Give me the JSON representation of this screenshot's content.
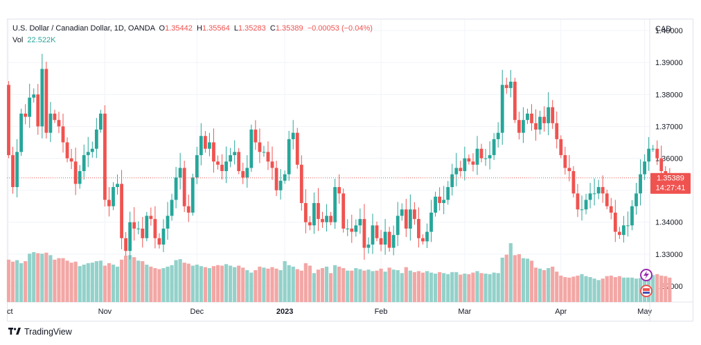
{
  "legend": {
    "symbol": "U.S. Dollar / Canadian Dollar, 1D, OANDA",
    "o_label": "O",
    "o": "1.35442",
    "h_label": "H",
    "h": "1.35564",
    "l_label": "L",
    "l": "1.35283",
    "c_label": "C",
    "c": "1.35389",
    "change": "−0.00053 (−0.04%)",
    "vol_label": "Vol",
    "vol": "22.522K"
  },
  "brand": "TradingView",
  "colors": {
    "up": "#26a69a",
    "down": "#ef5350",
    "up_vol": "#93d1ca",
    "down_vol": "#f2a7a5",
    "grid": "#f0f3fa"
  },
  "chart_data": {
    "type": "candlestick",
    "currency": "CAD",
    "ylim": [
      1.315,
      1.4035
    ],
    "y_ticks": [
      "1.40000",
      "1.39000",
      "1.38000",
      "1.37000",
      "1.36000",
      "1.35000",
      "1.34000",
      "1.33000",
      "1.32000"
    ],
    "x_ticks": [
      {
        "label": "ct",
        "index": 0
      },
      {
        "label": "Nov",
        "index": 23
      },
      {
        "label": "Dec",
        "index": 45
      },
      {
        "label": "2023",
        "index": 66
      },
      {
        "label": "Feb",
        "index": 89
      },
      {
        "label": "Mar",
        "index": 109
      },
      {
        "label": "Apr",
        "index": 132
      },
      {
        "label": "May",
        "index": 152
      }
    ],
    "last_price": "1.35389",
    "countdown": "14:27:41",
    "close": [
      1.361,
      1.351,
      1.362,
      1.374,
      1.373,
      1.379,
      1.38,
      1.37,
      1.388,
      1.368,
      1.374,
      1.372,
      1.37,
      1.365,
      1.36,
      1.359,
      1.352,
      1.356,
      1.361,
      1.362,
      1.363,
      1.369,
      1.374,
      1.347,
      1.345,
      1.351,
      1.352,
      1.335,
      1.331,
      1.34,
      1.338,
      1.338,
      1.335,
      1.342,
      1.341,
      1.335,
      1.333,
      1.338,
      1.342,
      1.347,
      1.354,
      1.357,
      1.345,
      1.343,
      1.354,
      1.361,
      1.367,
      1.363,
      1.365,
      1.359,
      1.358,
      1.356,
      1.359,
      1.361,
      1.362,
      1.356,
      1.354,
      1.357,
      1.369,
      1.365,
      1.362,
      1.362,
      1.359,
      1.357,
      1.35,
      1.353,
      1.355,
      1.366,
      1.368,
      1.358,
      1.346,
      1.34,
      1.339,
      1.346,
      1.341,
      1.34,
      1.342,
      1.34,
      1.351,
      1.349,
      1.338,
      1.338,
      1.337,
      1.339,
      1.341,
      1.332,
      1.333,
      1.339,
      1.335,
      1.333,
      1.337,
      1.332,
      1.336,
      1.342,
      1.344,
      1.338,
      1.344,
      1.341,
      1.335,
      1.334,
      1.337,
      1.343,
      1.348,
      1.346,
      1.347,
      1.351,
      1.355,
      1.357,
      1.356,
      1.36,
      1.359,
      1.358,
      1.363,
      1.36,
      1.36,
      1.361,
      1.366,
      1.368,
      1.383,
      1.382,
      1.384,
      1.372,
      1.368,
      1.372,
      1.374,
      1.371,
      1.369,
      1.373,
      1.371,
      1.376,
      1.371,
      1.366,
      1.361,
      1.357,
      1.356,
      1.349,
      1.344,
      1.344,
      1.347,
      1.349,
      1.349,
      1.351,
      1.349,
      1.345,
      1.343,
      1.337,
      1.336,
      1.339,
      1.339,
      1.345,
      1.349,
      1.355,
      1.359,
      1.363,
      1.363,
      1.36,
      1.356,
      1.354,
      1.3539
    ],
    "volume": [
      17.0,
      16.2,
      16.8,
      15.6,
      16.4,
      19.4,
      20.0,
      19.6,
      19.4,
      19.8,
      18.8,
      17.0,
      17.6,
      17.6,
      16.6,
      15.8,
      16.2,
      14.4,
      15.0,
      15.6,
      15.8,
      16.4,
      16.6,
      14.6,
      15.6,
      15.0,
      14.2,
      17.0,
      18.6,
      18.8,
      18.0,
      16.6,
      16.4,
      15.0,
      14.2,
      13.6,
      13.2,
      13.6,
      14.2,
      14.8,
      16.8,
      17.2,
      15.8,
      15.4,
      14.6,
      15.0,
      14.4,
      14.0,
      13.6,
      14.4,
      14.8,
      14.6,
      15.2,
      14.6,
      14.0,
      14.6,
      13.8,
      12.8,
      11.8,
      12.8,
      14.2,
      13.8,
      13.4,
      14.0,
      13.4,
      12.8,
      16.4,
      14.8,
      14.2,
      13.2,
      12.6,
      15.6,
      14.6,
      11.6,
      13.0,
      13.6,
      14.2,
      11.6,
      14.8,
      14.2,
      13.6,
      12.6,
      12.6,
      13.6,
      13.2,
      12.6,
      13.0,
      12.4,
      12.6,
      13.4,
      12.2,
      13.8,
      13.0,
      12.8,
      11.6,
      14.0,
      12.6,
      12.0,
      12.4,
      11.8,
      12.4,
      11.8,
      11.4,
      12.0,
      11.6,
      11.2,
      12.0,
      12.0,
      11.0,
      11.4,
      11.2,
      11.8,
      12.4,
      11.6,
      11.4,
      11.2,
      11.8,
      11.6,
      17.8,
      19.0,
      23.6,
      18.8,
      19.2,
      17.6,
      17.4,
      16.6,
      13.8,
      13.4,
      12.8,
      13.6,
      14.2,
      12.2,
      10.6,
      10.0,
      9.8,
      10.2,
      10.6,
      11.2,
      10.4,
      10.0,
      9.4,
      8.8,
      9.4,
      10.4,
      10.6,
      10.0,
      10.4,
      9.8,
      9.8,
      9.8,
      9.4,
      9.6,
      9.4,
      10.6,
      10.8,
      11.2,
      10.6,
      10.4,
      9.8
    ]
  }
}
